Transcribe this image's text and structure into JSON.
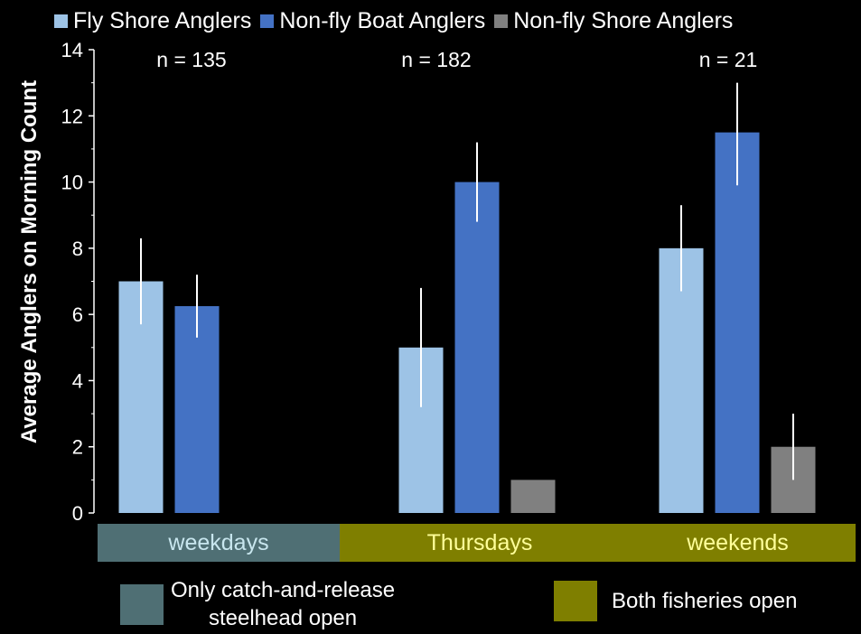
{
  "chart_data": {
    "type": "bar",
    "categories": [
      "weekdays",
      "Thursdays",
      "weekends"
    ],
    "series": [
      {
        "name": "Fly Shore Anglers",
        "color": "#9dc3e6",
        "values": [
          7.0,
          5.0,
          8.0
        ],
        "error_low": [
          5.7,
          3.2,
          6.7
        ],
        "error_high": [
          8.3,
          6.8,
          9.3
        ]
      },
      {
        "name": "Non-fly Boat Anglers",
        "color": "#4472c4",
        "values": [
          6.25,
          10.0,
          11.5
        ],
        "error_low": [
          5.3,
          8.8,
          9.9
        ],
        "error_high": [
          7.2,
          11.2,
          13.0
        ]
      },
      {
        "name": "Non-fly Shore Anglers",
        "color": "#808080",
        "values": [
          0,
          1.0,
          2.0
        ],
        "error_low": [
          null,
          null,
          1.0
        ],
        "error_high": [
          null,
          null,
          3.0
        ]
      }
    ],
    "n_labels": [
      "n = 135",
      "n = 182",
      "n = 21"
    ],
    "ylabel": "Average Anglers on Morning Count",
    "ylim": [
      0,
      14
    ],
    "yticks": [
      "0",
      "2",
      "4",
      "6",
      "8",
      "10",
      "12",
      "14"
    ],
    "legend_position": "top",
    "grid": false
  },
  "category_bands": [
    {
      "label": "weekdays",
      "color": "#4f6f74",
      "text_color": "#c8e6ee"
    },
    {
      "label": "Thursdays",
      "color": "#7f7f00",
      "text_color": "#ffff99"
    },
    {
      "label": "weekends",
      "color": "#7f7f00",
      "text_color": "#ffff99"
    }
  ],
  "bottom_legend": [
    {
      "label_line1": "Only catch-and-release",
      "label_line2": "steelhead open",
      "color": "#4f6f74"
    },
    {
      "label_line1": "Both fisheries open",
      "label_line2": "",
      "color": "#7f7f00"
    }
  ]
}
